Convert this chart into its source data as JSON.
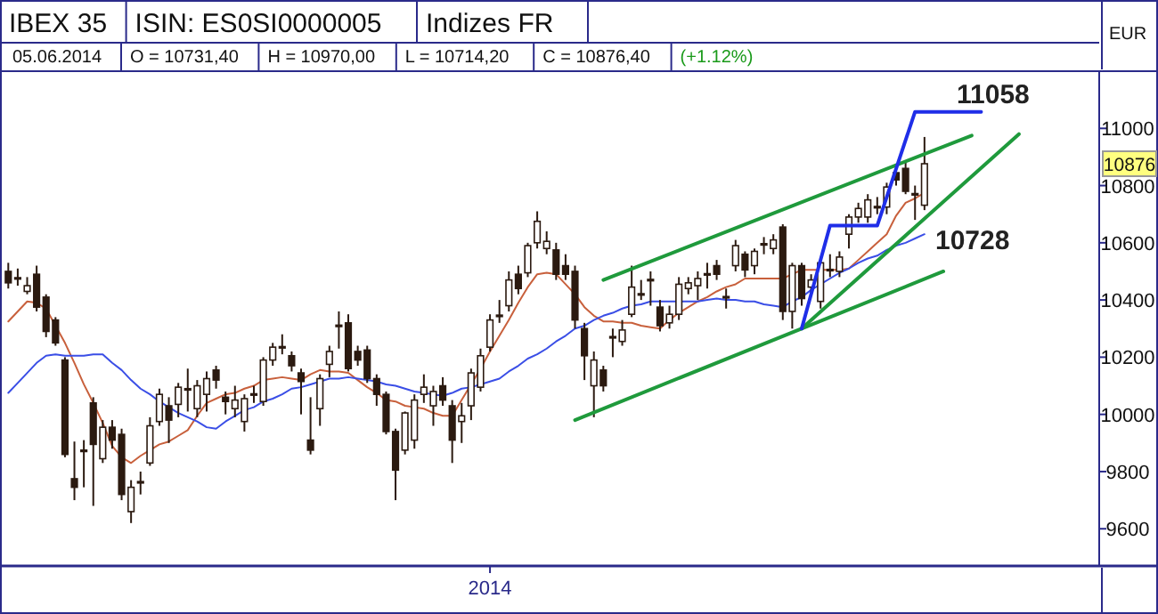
{
  "chart_data": {
    "type": "candlestick",
    "title": "IBEX 35",
    "subtitle": "ISIN: ES0SI0000005",
    "ylabel": "EUR",
    "annotations": [
      "Indizes FR",
      "05.06.2014",
      "O = 10731,40",
      "H = 10970,00",
      "L = 10714,20",
      "C = 10876,40",
      "(+1.12%)",
      "11058",
      "10728",
      "10876"
    ],
    "categories": [
      null,
      null,
      null,
      null,
      null,
      null,
      null,
      null,
      null,
      null,
      null,
      null,
      null,
      null,
      null,
      null,
      null,
      null,
      null,
      null,
      null,
      null,
      null,
      null,
      null,
      null,
      null,
      null,
      null,
      null,
      null,
      null,
      null,
      null,
      null,
      null,
      null,
      null,
      null,
      null,
      null,
      null,
      null,
      null,
      null,
      null,
      null,
      null,
      null,
      null,
      null,
      "2014",
      null,
      null,
      null,
      null,
      null,
      null,
      null,
      null,
      null,
      null,
      null,
      null,
      null,
      null,
      null,
      null,
      null,
      null,
      null,
      null,
      null,
      null,
      null,
      null,
      null,
      null,
      null,
      null,
      null,
      null,
      null,
      null,
      null,
      null,
      null,
      null,
      null,
      null,
      null,
      null,
      null,
      null,
      null,
      null,
      null,
      null,
      null,
      null,
      null,
      null,
      null,
      null,
      null,
      null,
      null,
      null,
      null,
      null,
      null,
      null,
      null,
      null,
      null,
      null
    ],
    "ylim": [
      9470,
      11200
    ],
    "yticks": [
      9600,
      9800,
      10000,
      10200,
      10400,
      10600,
      10800,
      11000
    ],
    "ohlc": [
      [
        10500,
        10530,
        10440,
        10460
      ],
      [
        10475,
        10510,
        10450,
        10478
      ],
      [
        10430,
        10480,
        10420,
        10450
      ],
      [
        10490,
        10520,
        10360,
        10375
      ],
      [
        10410,
        10420,
        10270,
        10290
      ],
      [
        10330,
        10340,
        10240,
        10250
      ],
      [
        10190,
        10200,
        9850,
        9860
      ],
      [
        9775,
        9905,
        9700,
        9745
      ],
      [
        9870,
        9910,
        9745,
        9875
      ],
      [
        10040,
        10060,
        9680,
        9895
      ],
      [
        9845,
        9980,
        9830,
        9955
      ],
      [
        9955,
        9980,
        9880,
        9910
      ],
      [
        9930,
        9950,
        9700,
        9720
      ],
      [
        9660,
        9770,
        9620,
        9745
      ],
      [
        9760,
        9800,
        9720,
        9765
      ],
      [
        9830,
        9990,
        9820,
        9960
      ],
      [
        9975,
        10090,
        9960,
        10070
      ],
      [
        10030,
        10060,
        9900,
        9980
      ],
      [
        10035,
        10110,
        9990,
        10095
      ],
      [
        10085,
        10160,
        10010,
        10090
      ],
      [
        10020,
        10120,
        9990,
        10100
      ],
      [
        10070,
        10150,
        10010,
        10125
      ],
      [
        10155,
        10170,
        10090,
        10120
      ],
      [
        10060,
        10080,
        10000,
        10045
      ],
      [
        10020,
        10100,
        9990,
        10050
      ],
      [
        9975,
        10070,
        9940,
        10055
      ],
      [
        10068,
        10100,
        10040,
        10072
      ],
      [
        10045,
        10200,
        10030,
        10190
      ],
      [
        10190,
        10250,
        10170,
        10235
      ],
      [
        10233,
        10280,
        10210,
        10237
      ],
      [
        10205,
        10220,
        10150,
        10170
      ],
      [
        10145,
        10160,
        10000,
        10115
      ],
      [
        9910,
        10060,
        9860,
        9875
      ],
      [
        10020,
        10140,
        9960,
        10125
      ],
      [
        10175,
        10240,
        10130,
        10220
      ],
      [
        10308,
        10360,
        10230,
        10312
      ],
      [
        10320,
        10350,
        10150,
        10160
      ],
      [
        10220,
        10240,
        10170,
        10190
      ],
      [
        10225,
        10240,
        10110,
        10125
      ],
      [
        10125,
        10140,
        10030,
        10070
      ],
      [
        10070,
        10080,
        9930,
        9940
      ],
      [
        9940,
        9950,
        9700,
        9805
      ],
      [
        9875,
        10010,
        9860,
        10005
      ],
      [
        9910,
        10070,
        9880,
        10050
      ],
      [
        10070,
        10140,
        10040,
        10095
      ],
      [
        10030,
        10100,
        9960,
        10080
      ],
      [
        10100,
        10130,
        10030,
        10050
      ],
      [
        10030,
        10050,
        9830,
        9910
      ],
      [
        9975,
        10040,
        9900,
        9995
      ],
      [
        10030,
        10160,
        9980,
        10145
      ],
      [
        10095,
        10230,
        10080,
        10205
      ],
      [
        10235,
        10350,
        10220,
        10330
      ],
      [
        10343,
        10400,
        10320,
        10347
      ],
      [
        10380,
        10500,
        10360,
        10470
      ],
      [
        10490,
        10520,
        10420,
        10440
      ],
      [
        10495,
        10600,
        10480,
        10590
      ],
      [
        10600,
        10710,
        10580,
        10675
      ],
      [
        10580,
        10640,
        10560,
        10605
      ],
      [
        10575,
        10600,
        10470,
        10490
      ],
      [
        10520,
        10560,
        10470,
        10490
      ],
      [
        10500,
        10520,
        10300,
        10330
      ],
      [
        10300,
        10320,
        10120,
        10205
      ],
      [
        10100,
        10220,
        9990,
        10190
      ],
      [
        10155,
        10170,
        10080,
        10100
      ],
      [
        10268,
        10300,
        10200,
        10272
      ],
      [
        10255,
        10330,
        10240,
        10295
      ],
      [
        10350,
        10520,
        10340,
        10445
      ],
      [
        10418,
        10470,
        10400,
        10422
      ],
      [
        10468,
        10500,
        10380,
        10472
      ],
      [
        10375,
        10400,
        10290,
        10310
      ],
      [
        10320,
        10380,
        10300,
        10350
      ],
      [
        10350,
        10480,
        10330,
        10455
      ],
      [
        10440,
        10480,
        10420,
        10460
      ],
      [
        10450,
        10500,
        10400,
        10475
      ],
      [
        10488,
        10530,
        10440,
        10492
      ],
      [
        10520,
        10540,
        10470,
        10490
      ],
      [
        10408,
        10440,
        10370,
        10412
      ],
      [
        10520,
        10610,
        10500,
        10590
      ],
      [
        10560,
        10570,
        10480,
        10505
      ],
      [
        10520,
        10580,
        10490,
        10570
      ],
      [
        10593,
        10620,
        10560,
        10597
      ],
      [
        10580,
        10630,
        10560,
        10610
      ],
      [
        10655,
        10665,
        10330,
        10360
      ],
      [
        10360,
        10530,
        10300,
        10520
      ],
      [
        10520,
        10530,
        10380,
        10405
      ],
      [
        10445,
        10490,
        10420,
        10470
      ],
      [
        10395,
        10540,
        10370,
        10530
      ],
      [
        10503,
        10560,
        10480,
        10507
      ],
      [
        10500,
        10570,
        10480,
        10550
      ],
      [
        10630,
        10700,
        10580,
        10690
      ],
      [
        10690,
        10740,
        10670,
        10720
      ],
      [
        10690,
        10770,
        10670,
        10750
      ],
      [
        10723,
        10760,
        10700,
        10727
      ],
      [
        10725,
        10810,
        10700,
        10795
      ],
      [
        10845,
        10860,
        10800,
        10820
      ],
      [
        10860,
        10880,
        10770,
        10780
      ],
      [
        10768,
        10800,
        10680,
        10772
      ],
      [
        10731.4,
        10970,
        10714.2,
        10876.4
      ],
      null,
      null,
      null,
      null,
      null,
      null,
      null,
      null,
      null,
      null,
      null,
      null,
      null,
      null,
      null,
      null,
      null,
      null
    ],
    "series": [
      {
        "type": "line",
        "color": "#c8603c",
        "values": [
          10325,
          10360,
          10395,
          10390,
          10370,
          10310,
          10250,
          10180,
          10105,
          10040,
          9970,
          9890,
          9850,
          9830,
          9855,
          9875,
          9895,
          9905,
          9925,
          9945,
          9995,
          10040,
          10055,
          10070,
          10075,
          10090,
          10100,
          10120,
          10125,
          10130,
          10125,
          10120,
          10140,
          10155,
          10150,
          10150,
          10145,
          10120,
          10095,
          10075,
          10050,
          10045,
          10030,
          10025,
          10020,
          10005,
          9995,
          9995,
          10050,
          10105,
          10160,
          10220,
          10275,
          10330,
          10390,
          10445,
          10490,
          10495,
          10490,
          10455,
          10420,
          10375,
          10345,
          10325,
          10325,
          10320,
          10320,
          10310,
          10305,
          10300,
          10330,
          10355,
          10375,
          10395,
          10410,
          10430,
          10445,
          10455,
          10475,
          10475,
          10475,
          10475,
          10475,
          10490,
          10505,
          10505,
          10505,
          10505,
          10505,
          10510,
          10540,
          10570,
          10600,
          10630,
          10695,
          10740,
          10755,
          10775,
          null,
          null,
          null,
          null,
          null,
          null,
          null,
          null,
          null,
          null,
          null,
          null,
          null,
          null,
          null,
          null,
          null,
          null
        ]
      },
      {
        "type": "line",
        "color": "#3a4ee6",
        "values": [
          10075,
          10110,
          10145,
          10180,
          10205,
          10210,
          10205,
          10205,
          10205,
          10210,
          10210,
          10180,
          10155,
          10120,
          10090,
          10070,
          10045,
          10025,
          10005,
          9990,
          9975,
          9955,
          9950,
          9975,
          9995,
          10015,
          10025,
          10045,
          10055,
          10070,
          10090,
          10095,
          10105,
          10115,
          10125,
          10125,
          10130,
          10125,
          10120,
          10115,
          10105,
          10100,
          10090,
          10080,
          10075,
          10070,
          10065,
          10075,
          10090,
          10095,
          10105,
          10115,
          10125,
          10150,
          10170,
          10195,
          10210,
          10230,
          10255,
          10275,
          10300,
          10310,
          10330,
          10345,
          10355,
          10370,
          10380,
          10385,
          10395,
          10395,
          10395,
          10395,
          10395,
          10395,
          10400,
          10405,
          10400,
          10400,
          10395,
          10395,
          10385,
          10380,
          10375,
          10395,
          10410,
          10435,
          10455,
          10475,
          10495,
          10510,
          10530,
          10545,
          10555,
          10575,
          10590,
          10600,
          10615,
          10630,
          null,
          null,
          null,
          null,
          null,
          null,
          null,
          null,
          null,
          null,
          null,
          null,
          null,
          null,
          null,
          null,
          null,
          null
        ]
      },
      {
        "type": "line",
        "color": "#1f9a3c",
        "values": [
          null,
          null,
          null,
          null,
          null,
          null,
          null,
          null,
          null,
          null,
          null,
          null,
          null,
          null,
          null,
          null,
          null,
          null,
          null,
          null,
          null,
          null,
          null,
          null,
          null,
          null,
          null,
          null,
          null,
          null,
          null,
          null,
          null,
          null,
          null,
          null,
          null,
          null,
          null,
          null,
          null,
          null,
          null,
          null,
          null,
          null,
          null,
          null,
          null,
          null,
          null,
          null,
          null,
          null,
          null,
          null,
          null,
          null,
          null,
          null,
          null,
          null,
          null,
          10470,
          null,
          null,
          null,
          null,
          null,
          null,
          null,
          null,
          null,
          null,
          null,
          null,
          null,
          null,
          null,
          null,
          null,
          null,
          null,
          null,
          null,
          null,
          null,
          null,
          null,
          null,
          null,
          null,
          null,
          null,
          null,
          null,
          null,
          null,
          null,
          null,
          null,
          null,
          10975,
          null,
          null,
          null,
          null,
          null,
          null,
          null,
          null,
          null,
          null,
          null,
          null,
          null
        ]
      },
      {
        "type": "line",
        "color": "#1f9a3c",
        "values": [
          null,
          null,
          null,
          null,
          null,
          null,
          null,
          null,
          null,
          null,
          null,
          null,
          null,
          null,
          null,
          null,
          null,
          null,
          null,
          null,
          null,
          null,
          null,
          null,
          null,
          null,
          null,
          null,
          null,
          null,
          null,
          null,
          null,
          null,
          null,
          null,
          null,
          null,
          null,
          null,
          null,
          null,
          null,
          null,
          null,
          null,
          null,
          null,
          null,
          null,
          null,
          null,
          null,
          null,
          null,
          null,
          null,
          null,
          null,
          null,
          9980,
          null,
          null,
          null,
          null,
          null,
          null,
          null,
          null,
          null,
          null,
          null,
          null,
          null,
          null,
          null,
          null,
          null,
          null,
          null,
          null,
          null,
          null,
          null,
          null,
          null,
          null,
          null,
          null,
          null,
          null,
          null,
          null,
          null,
          null,
          null,
          null,
          null,
          null,
          10500,
          null,
          null,
          null,
          null,
          null,
          null,
          null,
          null,
          null,
          null,
          null,
          null,
          null,
          null,
          null,
          null
        ]
      },
      {
        "type": "line",
        "color": "#1f9a3c",
        "values": [
          null,
          null,
          null,
          null,
          null,
          null,
          null,
          null,
          null,
          null,
          null,
          null,
          null,
          null,
          null,
          null,
          null,
          null,
          null,
          null,
          null,
          null,
          null,
          null,
          null,
          null,
          null,
          null,
          null,
          null,
          null,
          null,
          null,
          null,
          null,
          null,
          null,
          null,
          null,
          null,
          null,
          null,
          null,
          null,
          null,
          null,
          null,
          null,
          null,
          null,
          null,
          null,
          null,
          null,
          null,
          null,
          null,
          null,
          null,
          null,
          null,
          null,
          null,
          null,
          null,
          null,
          null,
          null,
          null,
          null,
          null,
          null,
          null,
          null,
          null,
          null,
          null,
          null,
          null,
          null,
          null,
          null,
          null,
          null,
          10300,
          null,
          null,
          null,
          null,
          null,
          null,
          null,
          null,
          null,
          null,
          null,
          null,
          null,
          null,
          null,
          null,
          null,
          null,
          null,
          null,
          null,
          null,
          10980,
          null,
          null,
          null,
          null,
          null,
          null,
          null,
          null
        ]
      },
      {
        "type": "line",
        "color": "#1f2ee8",
        "values": [
          null,
          null,
          null,
          null,
          null,
          null,
          null,
          null,
          null,
          null,
          null,
          null,
          null,
          null,
          null,
          null,
          null,
          null,
          null,
          null,
          null,
          null,
          null,
          null,
          null,
          null,
          null,
          null,
          null,
          null,
          null,
          null,
          null,
          null,
          null,
          null,
          null,
          null,
          null,
          null,
          null,
          null,
          null,
          null,
          null,
          null,
          null,
          null,
          null,
          null,
          null,
          null,
          null,
          null,
          null,
          null,
          null,
          null,
          null,
          null,
          null,
          null,
          null,
          null,
          null,
          null,
          null,
          null,
          null,
          null,
          null,
          null,
          null,
          null,
          null,
          null,
          null,
          null,
          null,
          null,
          null,
          null,
          null,
          null,
          10300,
          null,
          null,
          10660,
          null,
          null,
          null,
          null,
          10660,
          null,
          null,
          null,
          11058,
          null,
          null,
          null,
          null,
          null,
          null,
          11058,
          null,
          null,
          null,
          null,
          null,
          null,
          null,
          null,
          null,
          null,
          null,
          null
        ]
      }
    ]
  }
}
